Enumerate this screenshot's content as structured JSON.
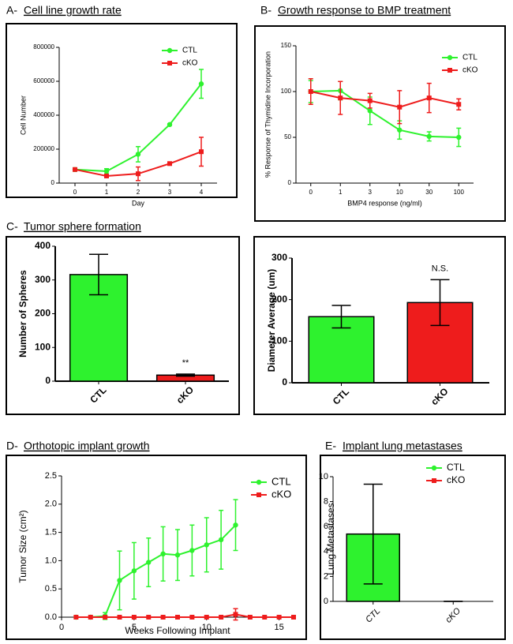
{
  "chart_data": [
    {
      "type": "line",
      "label": "A-",
      "title": "Cell line growth rate",
      "x_label": "Day",
      "y_label": "Cell Number",
      "categories": [
        "0",
        "1",
        "2",
        "3",
        "4"
      ],
      "series": [
        {
          "name": "CTL",
          "color": "#2ef22e",
          "marker": "circle",
          "values": [
            80000,
            70000,
            170000,
            345000,
            585000
          ],
          "errors": [
            10000,
            15000,
            45000,
            5000,
            85000
          ]
        },
        {
          "name": "cKO",
          "color": "#ee1c1c",
          "marker": "square",
          "values": [
            80000,
            42000,
            55000,
            115000,
            185000
          ],
          "errors": [
            8000,
            5000,
            40000,
            5000,
            85000
          ]
        }
      ],
      "ylim": [
        0,
        800000
      ],
      "yticks": [
        0,
        200000,
        400000,
        600000,
        800000
      ],
      "legend": "upper right"
    },
    {
      "type": "line",
      "label": "B-",
      "title": "Growth response to BMP treatment",
      "x_label": "BMP4 response (ng/ml)",
      "y_label": "% Response of Thymidine Incorporation",
      "categories": [
        "0",
        "1",
        "3",
        "10",
        "30",
        "100"
      ],
      "series": [
        {
          "name": "CTL",
          "color": "#2ef22e",
          "marker": "circle",
          "values": [
            100,
            101,
            79,
            58,
            51,
            50
          ],
          "errors": [
            12,
            10,
            15,
            10,
            5,
            10
          ]
        },
        {
          "name": "cKO",
          "color": "#ee1c1c",
          "marker": "square",
          "values": [
            100,
            93,
            90,
            83,
            93,
            86
          ],
          "errors": [
            14,
            18,
            8,
            18,
            16,
            6
          ]
        }
      ],
      "ylim": [
        0,
        150
      ],
      "yticks": [
        0,
        50,
        100,
        150
      ],
      "legend": "upper right"
    },
    {
      "type": "bar",
      "label": "C-",
      "title": "Tumor sphere formation",
      "y_label": "Number of Spheres",
      "categories": [
        "CTL",
        "cKO"
      ],
      "values": [
        316,
        18
      ],
      "errors": [
        60,
        3
      ],
      "colors": [
        "#2ef22e",
        "#ee1c1c"
      ],
      "annotation": "**",
      "ylim": [
        0,
        400
      ],
      "yticks": [
        0,
        100,
        200,
        300,
        400
      ]
    },
    {
      "type": "bar",
      "y_label": "Diameter Average (um)",
      "categories": [
        "CTL",
        "cKO"
      ],
      "values": [
        159,
        193
      ],
      "errors": [
        27,
        55
      ],
      "colors": [
        "#2ef22e",
        "#ee1c1c"
      ],
      "annotation": "N.S.",
      "ylim": [
        0,
        300
      ],
      "yticks": [
        0,
        100,
        200,
        300
      ]
    },
    {
      "type": "line",
      "label": "D-",
      "title": "Orthotopic implant growth",
      "x_label": "Weeks Following Implant",
      "y_label": "Tumor Size (cm²)",
      "series": [
        {
          "name": "CTL",
          "color": "#2ef22e",
          "marker": "circle",
          "x": [
            1,
            2,
            3,
            4,
            5,
            6,
            7,
            8,
            9,
            10,
            11,
            12
          ],
          "values": [
            0,
            0,
            0.02,
            0.65,
            0.82,
            0.97,
            1.12,
            1.1,
            1.18,
            1.28,
            1.37,
            1.63
          ],
          "errors": [
            0,
            0,
            0.06,
            0.52,
            0.5,
            0.43,
            0.48,
            0.45,
            0.45,
            0.48,
            0.52,
            0.45
          ]
        },
        {
          "name": "cKO",
          "color": "#ee1c1c",
          "marker": "square",
          "x": [
            1,
            2,
            3,
            4,
            5,
            6,
            7,
            8,
            9,
            10,
            11,
            12,
            13,
            14,
            15,
            16
          ],
          "values": [
            0,
            0,
            0,
            0,
            0,
            0,
            0,
            0,
            0,
            0,
            0,
            0.05,
            0,
            0,
            0,
            0
          ],
          "errors": [
            0,
            0,
            0,
            0,
            0,
            0,
            0,
            0,
            0,
            0,
            0,
            0.1,
            0,
            0,
            0,
            0
          ]
        }
      ],
      "xlim": [
        0,
        16
      ],
      "xticks": [
        0,
        5,
        10,
        15
      ],
      "ylim": [
        0,
        2.5
      ],
      "yticks": [
        {
          "value": 0,
          "label": "0.0"
        },
        0.5,
        {
          "value": 1,
          "label": "1.0"
        },
        1.5,
        {
          "value": 2,
          "label": "2.0"
        },
        2.5
      ],
      "legend": "upper right"
    },
    {
      "type": "bar",
      "label": "E-",
      "title": "Implant lung metastases",
      "y_label": "Lung Metastases",
      "categories": [
        "CTL",
        "cKO"
      ],
      "values": [
        5.4,
        0
      ],
      "errors": [
        4,
        0
      ],
      "colors": [
        "#2ef22e",
        "#ee1c1c"
      ],
      "legend": {
        "position": "upper right",
        "markers": [
          "circle",
          "square"
        ]
      },
      "ylim": [
        0,
        10
      ],
      "yticks": [
        0,
        2,
        4,
        6,
        8,
        10
      ]
    }
  ]
}
